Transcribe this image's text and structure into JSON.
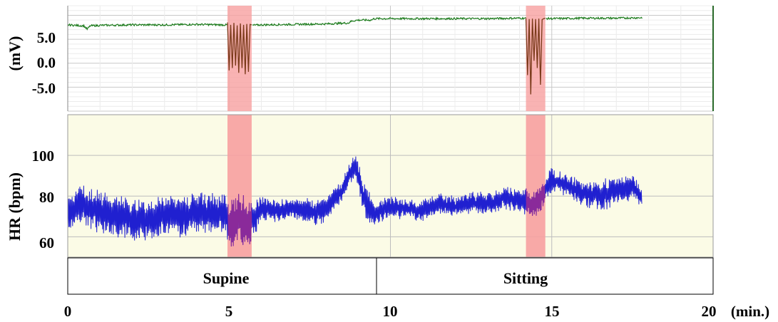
{
  "chart_data": [
    {
      "type": "line",
      "ylabel": "(mV)",
      "yticks": [
        "5.0",
        "0.0",
        "-5.0"
      ],
      "ytick_values": [
        5,
        0,
        -5
      ],
      "ylim": [
        -10,
        12
      ],
      "xlim": [
        0,
        20
      ],
      "grid": true,
      "series": [
        {
          "x": [
            0,
            0.5,
            0.6,
            0.7,
            1,
            2,
            3,
            4,
            4.8,
            5.7,
            6,
            7,
            8,
            8.7,
            8.8,
            9,
            9.4,
            9.5,
            10,
            11,
            12,
            13,
            14,
            14.6,
            15,
            16,
            17,
            17.8
          ],
          "values": [
            8,
            7.8,
            7.1,
            7.8,
            7.9,
            8,
            8,
            8.1,
            8,
            7.9,
            8,
            8.1,
            8.2,
            8.4,
            8.8,
            9,
            9,
            9.3,
            9.3,
            9.3,
            9.3,
            9.3,
            9.4,
            9.4,
            9.3,
            9.4,
            9.4,
            9.5
          ],
          "color": "#1a7a1a"
        }
      ],
      "highlight_bands": [
        [
          4.95,
          5.7
        ],
        [
          14.2,
          14.8
        ]
      ],
      "artifact_bursts": [
        {
          "x": [
            4.95,
            5.0,
            5.05,
            5.1,
            5.15,
            5.2,
            5.25,
            5.3,
            5.35,
            5.4,
            5.45,
            5.5,
            5.55,
            5.6,
            5.65,
            5.7
          ],
          "values": [
            8.5,
            -1.5,
            8,
            -1,
            8.4,
            -0.5,
            7.9,
            -2,
            8.3,
            -1,
            8,
            -2.3,
            8.2,
            -1.8,
            8.1,
            8
          ],
          "color": "#7a3a1a"
        },
        {
          "x": [
            14.2,
            14.25,
            14.3,
            14.35,
            14.4,
            14.45,
            14.5,
            14.55,
            14.6,
            14.65,
            14.7,
            14.75,
            14.8
          ],
          "values": [
            9.4,
            -2.5,
            9.2,
            -6.5,
            9.3,
            0.5,
            9.2,
            -1,
            9.3,
            -4.5,
            9.1,
            9.3,
            9.4
          ],
          "color": "#7a3a1a"
        }
      ]
    },
    {
      "type": "line",
      "ylabel": "HR (bpm)",
      "yticks": [
        "100",
        "80",
        "60"
      ],
      "ytick_values": [
        100,
        80,
        60
      ],
      "ylim": [
        50,
        120
      ],
      "xlim": [
        0,
        20
      ],
      "grid": true,
      "series": [
        {
          "x": [
            0,
            0.5,
            1,
            1.5,
            2,
            2.5,
            3,
            3.5,
            4,
            4.5,
            4.9,
            5.0,
            5.3,
            5.6,
            6,
            6.5,
            7,
            7.5,
            8,
            8.5,
            8.9,
            9.2,
            9.5,
            10,
            10.5,
            11,
            11.5,
            12,
            12.5,
            13,
            13.5,
            14,
            14.5,
            14.8,
            15,
            15.5,
            16,
            16.5,
            17,
            17.5,
            17.8
          ],
          "values": [
            73,
            76,
            72,
            70,
            69,
            68,
            71,
            70,
            72,
            71,
            72,
            64,
            70,
            66,
            74,
            73,
            74,
            72,
            73,
            83,
            96,
            78,
            71,
            75,
            74,
            73,
            76,
            75,
            77,
            76,
            79,
            78,
            76,
            83,
            88,
            85,
            81,
            80,
            83,
            85,
            79
          ],
          "spread": [
            10,
            10,
            10,
            10,
            10,
            10,
            10,
            10,
            10,
            10,
            10,
            14,
            12,
            12,
            6,
            5,
            5,
            6,
            7,
            5,
            6,
            8,
            6,
            5,
            5,
            5,
            5,
            5,
            5,
            5,
            5,
            6,
            7,
            6,
            6,
            6,
            6,
            7,
            7,
            6,
            4
          ],
          "color": "#2020d0"
        }
      ],
      "overlay_segments": [
        [
          4.95,
          5.7
        ],
        [
          14.2,
          14.8
        ]
      ],
      "overlay_color": "#8a2a9a",
      "highlight_bands": [
        [
          4.95,
          5.7
        ],
        [
          14.2,
          14.8
        ]
      ]
    }
  ],
  "x_axis": {
    "ticks": [
      "0",
      "5",
      "10",
      "15",
      "20"
    ],
    "tick_values": [
      0,
      5,
      10,
      15,
      20
    ],
    "unit": "(min.)"
  },
  "phases": [
    {
      "label": "Supine",
      "start": 0,
      "end": 9.6
    },
    {
      "label": "Sitting",
      "start": 9.6,
      "end": 20
    }
  ],
  "colors": {
    "band": "#f7a0a0",
    "hr_bg": "#fbfbe6",
    "grid": "#d8d8d8",
    "ecg_line": "#1a7a1a",
    "hr_line": "#2020d0"
  }
}
